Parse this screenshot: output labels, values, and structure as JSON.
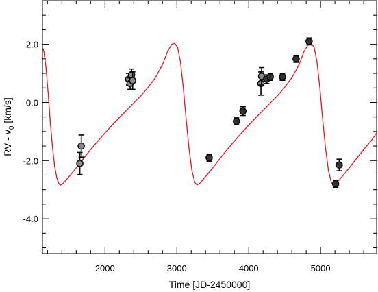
{
  "chart_data": {
    "type": "scatter",
    "xlabel": "Time [JD-2450000]",
    "ylabel": "RV - v",
    "ylabel_sub": "0",
    "ylabel_units": " [km/s]",
    "xlim": [
      1130,
      5780
    ],
    "ylim": [
      -5.2,
      3.5
    ],
    "xticks": [
      2000,
      3000,
      4000,
      5000
    ],
    "xtick_labels": [
      "2000",
      "3000",
      "4000",
      "5000"
    ],
    "yticks": [
      -4.0,
      -2.0,
      0.0,
      2.0
    ],
    "ytick_labels": [
      "-4.0",
      "-2.0",
      "0.0",
      "2.0"
    ],
    "x_minor_step": 200,
    "y_minor_step": 0.5,
    "grid": false,
    "model_curve": {
      "color": "#e8141e",
      "points": [
        [
          1130,
          1.9
        ],
        [
          1150,
          1.75
        ],
        [
          1180,
          1.2
        ],
        [
          1210,
          0.3
        ],
        [
          1240,
          -0.7
        ],
        [
          1270,
          -1.55
        ],
        [
          1300,
          -2.2
        ],
        [
          1330,
          -2.6
        ],
        [
          1360,
          -2.8
        ],
        [
          1380,
          -2.84
        ],
        [
          1420,
          -2.78
        ],
        [
          1500,
          -2.55
        ],
        [
          1600,
          -2.25
        ],
        [
          1700,
          -1.93
        ],
        [
          1800,
          -1.62
        ],
        [
          1900,
          -1.33
        ],
        [
          2000,
          -1.05
        ],
        [
          2100,
          -0.78
        ],
        [
          2200,
          -0.52
        ],
        [
          2300,
          -0.27
        ],
        [
          2400,
          -0.02
        ],
        [
          2500,
          0.23
        ],
        [
          2600,
          0.52
        ],
        [
          2700,
          0.85
        ],
        [
          2800,
          1.3
        ],
        [
          2870,
          1.75
        ],
        [
          2930,
          2.0
        ],
        [
          2970,
          2.03
        ],
        [
          3010,
          1.9
        ],
        [
          3050,
          1.4
        ],
        [
          3090,
          0.5
        ],
        [
          3130,
          -0.6
        ],
        [
          3170,
          -1.6
        ],
        [
          3210,
          -2.35
        ],
        [
          3250,
          -2.75
        ],
        [
          3280,
          -2.84
        ],
        [
          3320,
          -2.78
        ],
        [
          3400,
          -2.55
        ],
        [
          3500,
          -2.25
        ],
        [
          3600,
          -1.93
        ],
        [
          3700,
          -1.62
        ],
        [
          3800,
          -1.33
        ],
        [
          3900,
          -1.05
        ],
        [
          4000,
          -0.78
        ],
        [
          4100,
          -0.52
        ],
        [
          4200,
          -0.27
        ],
        [
          4300,
          -0.02
        ],
        [
          4400,
          0.23
        ],
        [
          4500,
          0.52
        ],
        [
          4600,
          0.85
        ],
        [
          4700,
          1.3
        ],
        [
          4770,
          1.75
        ],
        [
          4830,
          2.0
        ],
        [
          4870,
          2.03
        ],
        [
          4910,
          1.9
        ],
        [
          4950,
          1.4
        ],
        [
          4990,
          0.5
        ],
        [
          5030,
          -0.6
        ],
        [
          5070,
          -1.6
        ],
        [
          5110,
          -2.35
        ],
        [
          5150,
          -2.75
        ],
        [
          5180,
          -2.84
        ],
        [
          5220,
          -2.78
        ],
        [
          5300,
          -2.55
        ],
        [
          5400,
          -2.25
        ],
        [
          5500,
          -1.93
        ],
        [
          5600,
          -1.62
        ],
        [
          5700,
          -1.33
        ],
        [
          5780,
          -1.05
        ]
      ]
    },
    "series": [
      {
        "name": "",
        "color": "#888888",
        "points": [
          {
            "x": 1650,
            "y": -2.1,
            "err": 0.38
          },
          {
            "x": 1670,
            "y": -1.5,
            "err": 0.38
          },
          {
            "x": 2330,
            "y": 0.8,
            "err": 0.2
          },
          {
            "x": 2350,
            "y": 0.65,
            "err": 0.2
          },
          {
            "x": 2370,
            "y": 0.95,
            "err": 0.2
          },
          {
            "x": 2385,
            "y": 0.75,
            "err": 0.3
          },
          {
            "x": 4170,
            "y": 0.65,
            "err": 0.4
          },
          {
            "x": 4180,
            "y": 0.9,
            "err": 0.3
          }
        ]
      },
      {
        "name": "",
        "color": "#333333",
        "points": [
          {
            "x": 3450,
            "y": -1.9,
            "err": 0.12
          },
          {
            "x": 3830,
            "y": -0.65,
            "err": 0.12
          },
          {
            "x": 3920,
            "y": -0.3,
            "err": 0.15
          },
          {
            "x": 4250,
            "y": 0.8,
            "err": 0.15
          },
          {
            "x": 4300,
            "y": 0.88,
            "err": 0.12
          },
          {
            "x": 4470,
            "y": 0.88,
            "err": 0.12
          },
          {
            "x": 4660,
            "y": 1.5,
            "err": 0.12
          },
          {
            "x": 4840,
            "y": 2.1,
            "err": 0.12
          },
          {
            "x": 5210,
            "y": -2.8,
            "err": 0.12
          },
          {
            "x": 5260,
            "y": -2.15,
            "err": 0.2
          }
        ]
      }
    ]
  }
}
